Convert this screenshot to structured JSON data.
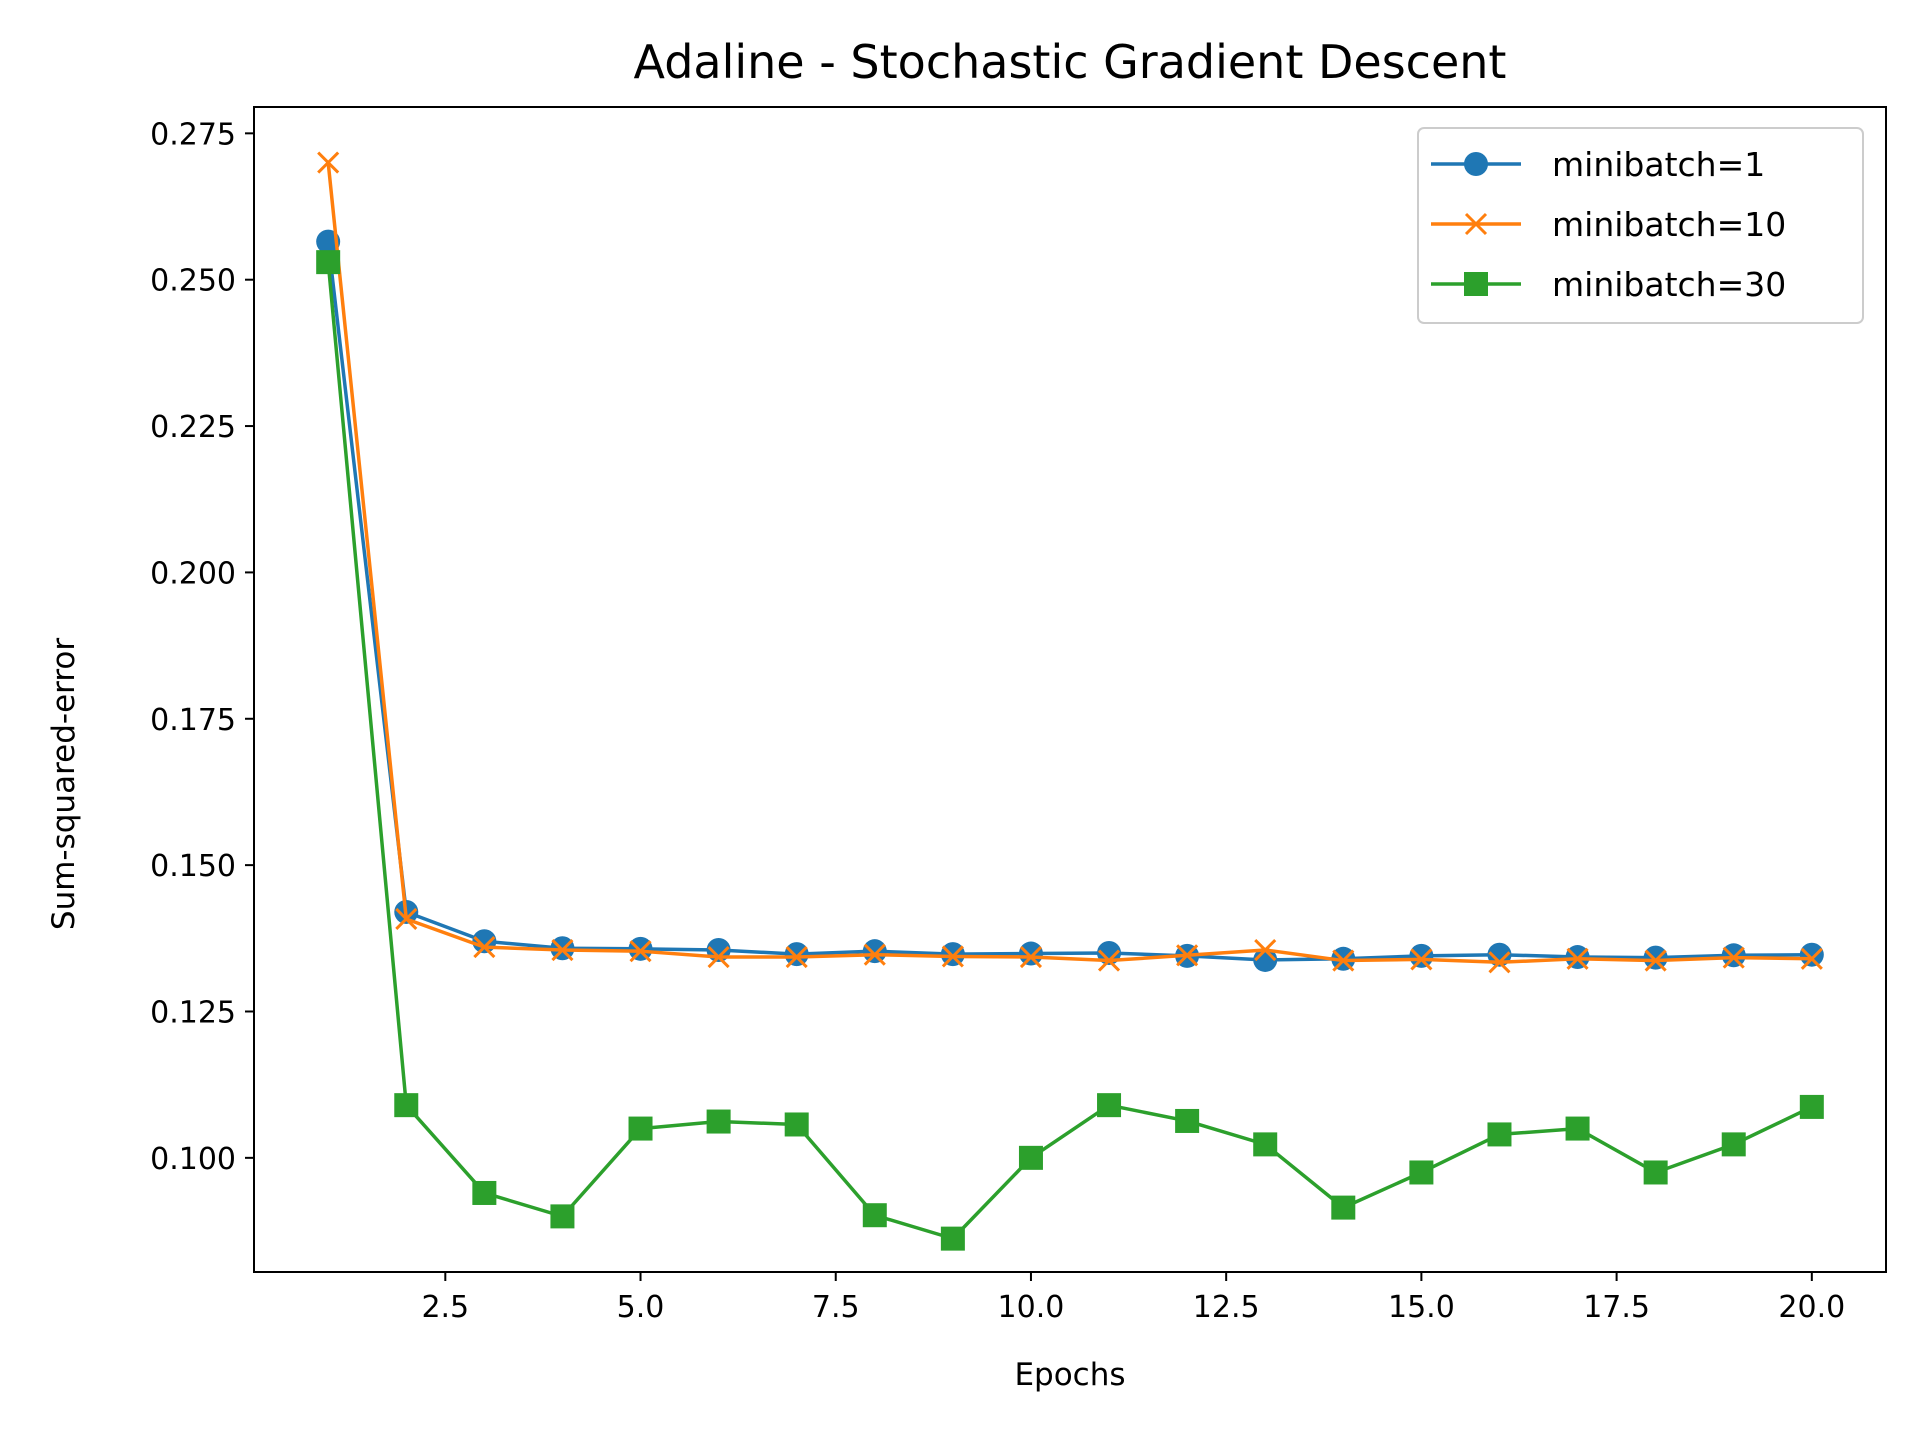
{
  "chart_data": {
    "type": "line",
    "title": "Adaline - Stochastic Gradient Descent",
    "xlabel": "Epochs",
    "ylabel": "Sum-squared-error",
    "xlim": [
      0.05,
      20.95
    ],
    "ylim": [
      0.0805,
      0.2795
    ],
    "x_ticks": [
      2.5,
      5.0,
      7.5,
      10.0,
      12.5,
      15.0,
      17.5,
      20.0
    ],
    "x_tick_labels": [
      "2.5",
      "5.0",
      "7.5",
      "10.0",
      "12.5",
      "15.0",
      "17.5",
      "20.0"
    ],
    "y_ticks": [
      0.1,
      0.125,
      0.15,
      0.175,
      0.2,
      0.225,
      0.25,
      0.275
    ],
    "y_tick_labels": [
      "0.100",
      "0.125",
      "0.150",
      "0.175",
      "0.200",
      "0.225",
      "0.250",
      "0.275"
    ],
    "grid": false,
    "legend_position": "top-right",
    "x": [
      1,
      2,
      3,
      4,
      5,
      6,
      7,
      8,
      9,
      10,
      11,
      12,
      13,
      14,
      15,
      16,
      17,
      18,
      19,
      20
    ],
    "series": [
      {
        "name": "minibatch=1",
        "color": "#1f77b4",
        "marker": "circle",
        "values": [
          0.2565,
          0.142,
          0.137,
          0.1358,
          0.1357,
          0.1355,
          0.1348,
          0.1353,
          0.1348,
          0.1349,
          0.135,
          0.1345,
          0.1338,
          0.134,
          0.1345,
          0.1347,
          0.1343,
          0.1342,
          0.1346,
          0.1347
        ]
      },
      {
        "name": "minibatch=10",
        "color": "#ff7f0e",
        "marker": "x",
        "values": [
          0.27,
          0.1408,
          0.136,
          0.1355,
          0.1353,
          0.1343,
          0.1343,
          0.1347,
          0.1344,
          0.1343,
          0.1337,
          0.1346,
          0.1355,
          0.1337,
          0.1339,
          0.1334,
          0.134,
          0.1337,
          0.1342,
          0.134
        ]
      },
      {
        "name": "minibatch=30",
        "color": "#2ca02c",
        "marker": "square",
        "values": [
          0.253,
          0.109,
          0.094,
          0.09,
          0.105,
          0.1062,
          0.1057,
          0.0902,
          0.0862,
          0.1,
          0.109,
          0.1063,
          0.1023,
          0.0915,
          0.0975,
          0.104,
          0.105,
          0.0975,
          0.1023,
          0.1087
        ]
      }
    ]
  }
}
